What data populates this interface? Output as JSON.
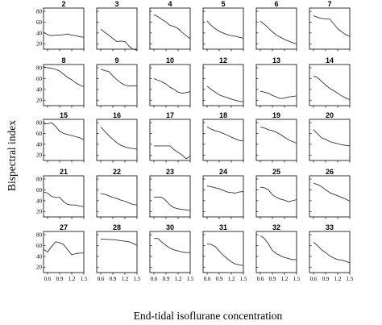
{
  "chart_data": {
    "type": "line",
    "xlabel": "End-tidal isoflurane concentration",
    "ylabel": "Bispectral index",
    "x": [
      0.5,
      0.6,
      0.7,
      0.8,
      0.9,
      1.0,
      1.1,
      1.2,
      1.3,
      1.4,
      1.5
    ],
    "xticks": [
      "0.6",
      "0.9",
      "1.2",
      "1.5"
    ],
    "xtick_values": [
      0.6,
      0.9,
      1.2,
      1.5
    ],
    "yticks": [
      "20",
      "40",
      "60",
      "80"
    ],
    "ytick_values": [
      20,
      40,
      60,
      80
    ],
    "xlim": [
      0.5,
      1.5
    ],
    "ylim": [
      10,
      86
    ],
    "grid": false,
    "layout": {
      "rows": 5,
      "cols": 6
    },
    "panels": [
      {
        "title": "2",
        "values": [
          41,
          37,
          35,
          36,
          36,
          37,
          38,
          36,
          35,
          33,
          32
        ]
      },
      {
        "title": "3",
        "values": [
          null,
          47,
          41,
          36,
          30,
          24,
          25,
          24,
          16,
          10,
          8
        ]
      },
      {
        "title": "4",
        "values": [
          null,
          74,
          70,
          65,
          60,
          54,
          52,
          48,
          41,
          35,
          29
        ]
      },
      {
        "title": "5",
        "values": [
          null,
          62,
          54,
          48,
          43,
          40,
          37,
          35,
          34,
          32,
          30
        ]
      },
      {
        "title": "6",
        "values": [
          null,
          62,
          56,
          49,
          42,
          36,
          32,
          28,
          25,
          22,
          20
        ]
      },
      {
        "title": "7",
        "values": [
          null,
          72,
          69,
          67,
          66,
          66,
          57,
          48,
          42,
          37,
          34
        ]
      },
      {
        "title": "8",
        "values": [
          82,
          80,
          79,
          77,
          74,
          68,
          62,
          58,
          52,
          48,
          45
        ]
      },
      {
        "title": "9",
        "values": [
          null,
          77,
          75,
          73,
          65,
          58,
          52,
          48,
          46,
          47,
          46
        ]
      },
      {
        "title": "10",
        "values": [
          null,
          60,
          57,
          54,
          50,
          44,
          40,
          35,
          33,
          34,
          36
        ]
      },
      {
        "title": "12",
        "values": [
          null,
          46,
          40,
          35,
          30,
          27,
          25,
          22,
          20,
          18,
          17
        ]
      },
      {
        "title": "13",
        "values": [
          null,
          37,
          35,
          33,
          29,
          26,
          23,
          24,
          26,
          27,
          28
        ]
      },
      {
        "title": "14",
        "values": [
          null,
          65,
          62,
          55,
          48,
          42,
          38,
          33,
          28,
          24,
          21
        ]
      },
      {
        "title": "15",
        "values": [
          78,
          78,
          80,
          73,
          64,
          60,
          58,
          56,
          54,
          52,
          48
        ]
      },
      {
        "title": "16",
        "values": [
          null,
          72,
          64,
          56,
          49,
          43,
          38,
          35,
          33,
          32,
          31
        ]
      },
      {
        "title": "17",
        "values": [
          null,
          37,
          37,
          37,
          37,
          37,
          30,
          25,
          20,
          13,
          18
        ]
      },
      {
        "title": "18",
        "values": [
          null,
          72,
          68,
          65,
          63,
          60,
          57,
          53,
          50,
          47,
          46
        ]
      },
      {
        "title": "19",
        "values": [
          null,
          72,
          70,
          67,
          65,
          62,
          58,
          53,
          48,
          45,
          42
        ]
      },
      {
        "title": "20",
        "values": [
          null,
          67,
          59,
          52,
          49,
          45,
          43,
          41,
          39,
          38,
          37
        ]
      },
      {
        "title": "21",
        "values": [
          56,
          54,
          48,
          46,
          46,
          38,
          33,
          32,
          32,
          30,
          29
        ]
      },
      {
        "title": "22",
        "values": [
          null,
          53,
          52,
          49,
          46,
          44,
          41,
          39,
          36,
          33,
          32
        ]
      },
      {
        "title": "23",
        "values": [
          null,
          46,
          47,
          46,
          40,
          32,
          27,
          25,
          24,
          23,
          23
        ]
      },
      {
        "title": "24",
        "values": [
          null,
          67,
          66,
          64,
          62,
          59,
          56,
          55,
          54,
          56,
          57
        ]
      },
      {
        "title": "25",
        "values": [
          null,
          65,
          64,
          60,
          51,
          46,
          43,
          41,
          38,
          40,
          42
        ]
      },
      {
        "title": "26",
        "values": [
          null,
          72,
          70,
          66,
          60,
          55,
          52,
          49,
          46,
          43,
          39
        ]
      },
      {
        "title": "27",
        "values": [
          53,
          48,
          58,
          67,
          65,
          62,
          52,
          43,
          45,
          46,
          46
        ]
      },
      {
        "title": "28",
        "values": [
          null,
          72,
          72,
          71,
          71,
          70,
          69,
          68,
          67,
          64,
          60
        ]
      },
      {
        "title": "30",
        "values": [
          null,
          73,
          73,
          66,
          60,
          55,
          52,
          50,
          48,
          47,
          47
        ]
      },
      {
        "title": "31",
        "values": [
          null,
          63,
          62,
          58,
          50,
          42,
          36,
          30,
          26,
          24,
          23
        ]
      },
      {
        "title": "32",
        "values": [
          null,
          78,
          73,
          63,
          51,
          45,
          41,
          38,
          36,
          34,
          34
        ]
      },
      {
        "title": "33",
        "values": [
          null,
          66,
          60,
          52,
          47,
          41,
          37,
          34,
          33,
          31,
          28
        ]
      }
    ]
  }
}
